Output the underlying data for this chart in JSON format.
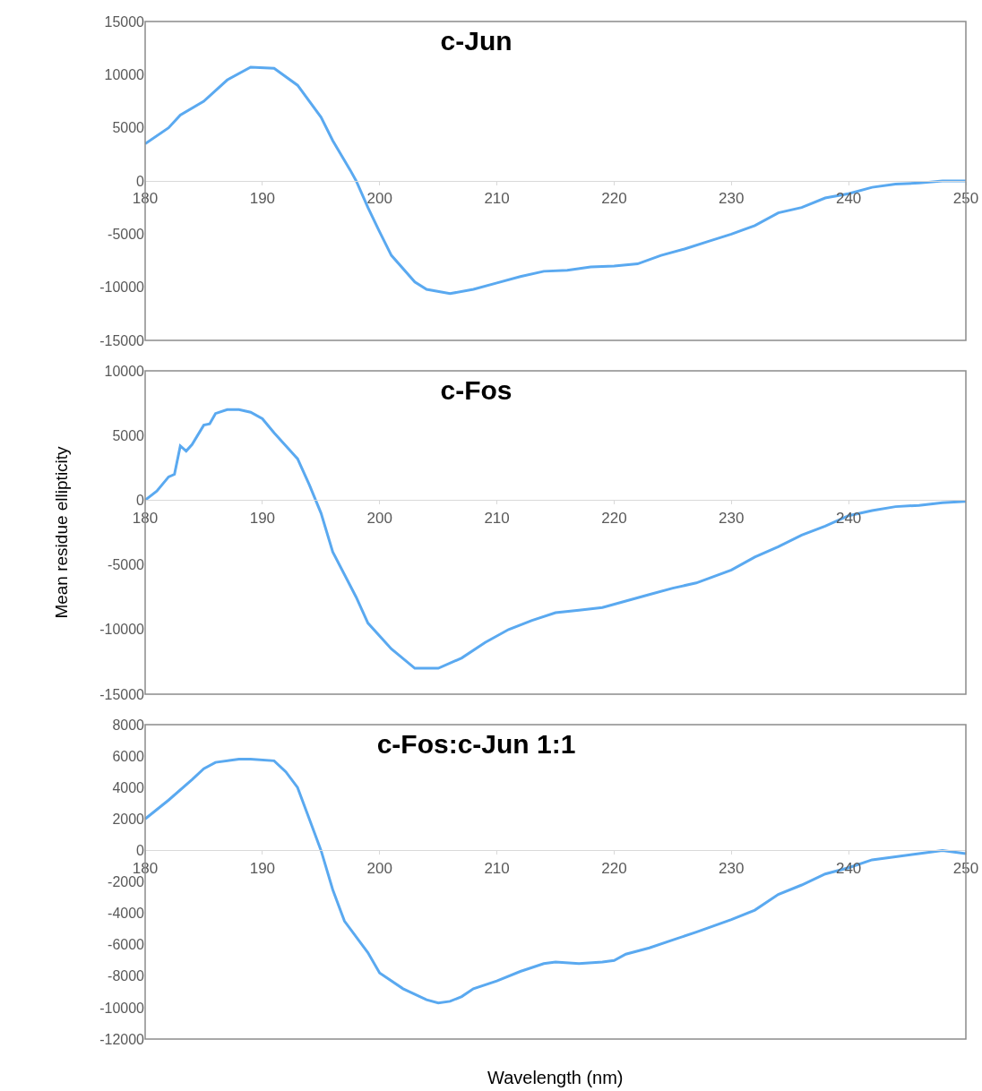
{
  "chart_data": [
    {
      "type": "line",
      "title": "c-Jun",
      "grid": false,
      "xlim": [
        180,
        250
      ],
      "xticks": [
        180,
        190,
        200,
        210,
        220,
        230,
        240,
        250
      ],
      "ylim": [
        -15000,
        15000
      ],
      "yticks": [
        -15000,
        -10000,
        -5000,
        0,
        5000,
        10000,
        15000
      ],
      "series": [
        {
          "color": "#5aa9f0",
          "x": [
            180,
            182,
            183,
            185,
            187,
            189,
            191,
            193,
            195,
            196,
            197.5,
            198,
            199,
            200,
            201,
            203,
            204,
            206,
            208,
            210,
            212,
            214,
            216,
            218,
            220,
            222,
            224,
            226,
            228,
            230,
            232,
            234,
            236,
            238,
            240,
            242,
            244,
            246,
            248,
            250
          ],
          "values": [
            3500,
            5000,
            6200,
            7500,
            9500,
            10700,
            10600,
            9000,
            6000,
            3800,
            1000,
            0,
            -2500,
            -4800,
            -7000,
            -9500,
            -10200,
            -10600,
            -10200,
            -9600,
            -9000,
            -8500,
            -8400,
            -8100,
            -8000,
            -7800,
            -7000,
            -6400,
            -5700,
            -5000,
            -4200,
            -3000,
            -2500,
            -1600,
            -1200,
            -600,
            -300,
            -200,
            0,
            0
          ]
        }
      ]
    },
    {
      "type": "line",
      "title": "c-Fos",
      "ylabel": "Mean residue ellipticity",
      "grid": false,
      "xlim": [
        180,
        250
      ],
      "xticks": [
        180,
        190,
        200,
        210,
        220,
        230,
        240
      ],
      "ylim": [
        -15000,
        10000
      ],
      "yticks": [
        -15000,
        -10000,
        -5000,
        0,
        5000,
        10000
      ],
      "series": [
        {
          "color": "#5aa9f0",
          "x": [
            180,
            181,
            182,
            182.5,
            183,
            183.5,
            184,
            185,
            185.5,
            186,
            187,
            188,
            189,
            190,
            191,
            193,
            194,
            195,
            196,
            198,
            199,
            201,
            203,
            205,
            207,
            209,
            211,
            213,
            215,
            217,
            219,
            221,
            223,
            225,
            227,
            230,
            232,
            234,
            236,
            238,
            240,
            242,
            244,
            246,
            248,
            250
          ],
          "values": [
            0,
            700,
            1800,
            2000,
            4200,
            3800,
            4300,
            5800,
            5900,
            6700,
            7000,
            7000,
            6800,
            6300,
            5200,
            3200,
            1200,
            -1000,
            -4000,
            -7500,
            -9500,
            -11500,
            -13000,
            -13000,
            -12200,
            -11000,
            -10000,
            -9300,
            -8700,
            -8500,
            -8300,
            -7800,
            -7300,
            -6800,
            -6400,
            -5400,
            -4400,
            -3600,
            -2700,
            -2000,
            -1200,
            -800,
            -500,
            -400,
            -200,
            -100
          ]
        }
      ]
    },
    {
      "type": "line",
      "title": "c-Fos:c-Jun 1:1",
      "xlabel": "Wavelength (nm)",
      "grid": false,
      "xlim": [
        180,
        250
      ],
      "xticks": [
        180,
        190,
        200,
        210,
        220,
        230,
        240,
        250
      ],
      "ylim": [
        -12000,
        8000
      ],
      "yticks": [
        -12000,
        -10000,
        -8000,
        -6000,
        -4000,
        -2000,
        0,
        2000,
        4000,
        6000,
        8000
      ],
      "series": [
        {
          "color": "#5aa9f0",
          "x": [
            180,
            182,
            184,
            185,
            186,
            188,
            189,
            191,
            192,
            193,
            194,
            195,
            196,
            197,
            199,
            200,
            202,
            204,
            205,
            206,
            207,
            208,
            210,
            212,
            214,
            215,
            217,
            219,
            220,
            221,
            223,
            225,
            227,
            230,
            232,
            234,
            236,
            238,
            240,
            242,
            244,
            246,
            248,
            250
          ],
          "values": [
            2000,
            3200,
            4500,
            5200,
            5600,
            5800,
            5800,
            5700,
            5000,
            4000,
            2000,
            0,
            -2500,
            -4500,
            -6500,
            -7800,
            -8800,
            -9500,
            -9700,
            -9600,
            -9300,
            -8800,
            -8300,
            -7700,
            -7200,
            -7100,
            -7200,
            -7100,
            -7000,
            -6600,
            -6200,
            -5700,
            -5200,
            -4400,
            -3800,
            -2800,
            -2200,
            -1500,
            -1100,
            -600,
            -400,
            -200,
            0,
            -200
          ]
        }
      ]
    }
  ]
}
